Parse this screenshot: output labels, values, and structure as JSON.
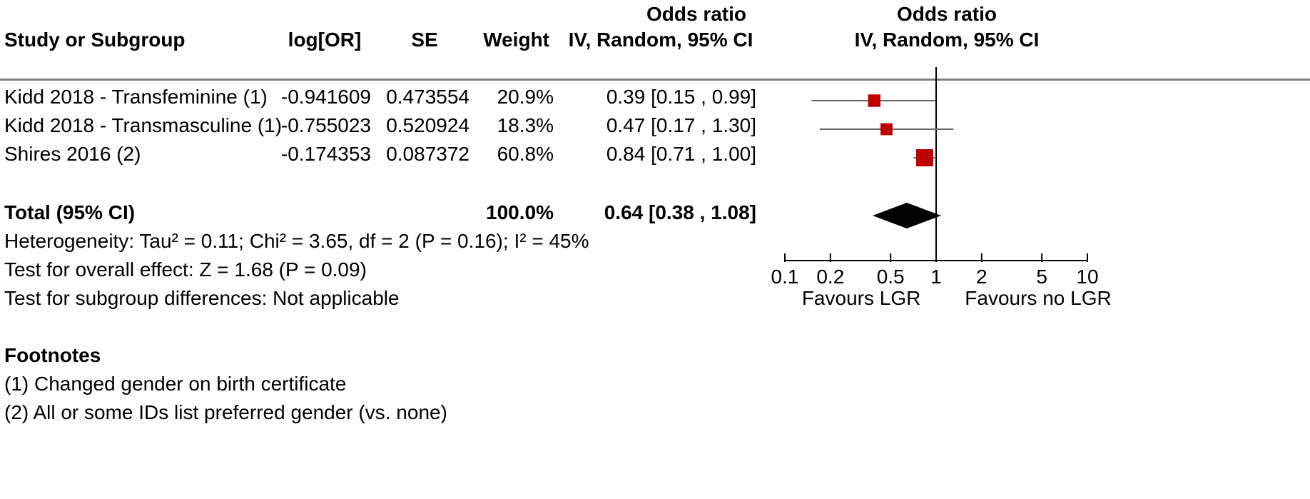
{
  "headers": {
    "study": "Study or Subgroup",
    "log_or": "log[OR]",
    "se": "SE",
    "weight": "Weight",
    "or_line1": "Odds ratio",
    "or_line2": "IV, Random, 95% CI",
    "plot_line1": "Odds ratio",
    "plot_line2": "IV, Random, 95% CI"
  },
  "total": {
    "label": "Total (95% CI)",
    "weight": "100.0%",
    "ci_text": "0.64 [0.38 , 1.08]"
  },
  "heterogeneity": "Heterogeneity: Tau² = 0.11; Chi² = 3.65, df = 2 (P = 0.16); I² = 45%",
  "overall_effect": "Test for overall effect: Z = 1.68 (P = 0.09)",
  "subgroup_diff": "Test for subgroup differences: Not applicable",
  "footnotes": {
    "title": "Footnotes",
    "items": [
      "(1) Changed gender on birth certificate",
      "(2) All or some IDs list preferred gender (vs. none)"
    ]
  },
  "chart_data": {
    "type": "scatter",
    "subtype": "forest_plot",
    "x_scale": "log",
    "xlim": [
      0.1,
      10
    ],
    "reference_line": 1,
    "x_ticks": [
      0.1,
      0.2,
      0.5,
      1,
      2,
      5,
      10
    ],
    "x_tick_labels": [
      "0.1",
      "0.2",
      "0.5",
      "1",
      "2",
      "5",
      "10"
    ],
    "favours_left": "Favours LGR",
    "favours_right": "Favours no LGR",
    "marker_color": "#c00000",
    "studies": [
      {
        "name": "Kidd 2018 - Transfeminine (1)",
        "log_or": "-0.941609",
        "se": "0.473554",
        "weight": "20.9%",
        "weight_value": 20.9,
        "or": 0.39,
        "ci_low": 0.15,
        "ci_high": 0.99,
        "ci_text": "0.39 [0.15 , 0.99]"
      },
      {
        "name": "Kidd 2018 - Transmasculine (1)",
        "log_or": "-0.755023",
        "se": "0.520924",
        "weight": "18.3%",
        "weight_value": 18.3,
        "or": 0.47,
        "ci_low": 0.17,
        "ci_high": 1.3,
        "ci_text": "0.47 [0.17 , 1.30]"
      },
      {
        "name": "Shires 2016 (2)",
        "log_or": "-0.174353",
        "se": "0.087372",
        "weight": "60.8%",
        "weight_value": 60.8,
        "or": 0.84,
        "ci_low": 0.71,
        "ci_high": 1.0,
        "ci_text": "0.84 [0.71 , 1.00]"
      }
    ],
    "pooled": {
      "or": 0.64,
      "ci_low": 0.38,
      "ci_high": 1.08
    }
  }
}
